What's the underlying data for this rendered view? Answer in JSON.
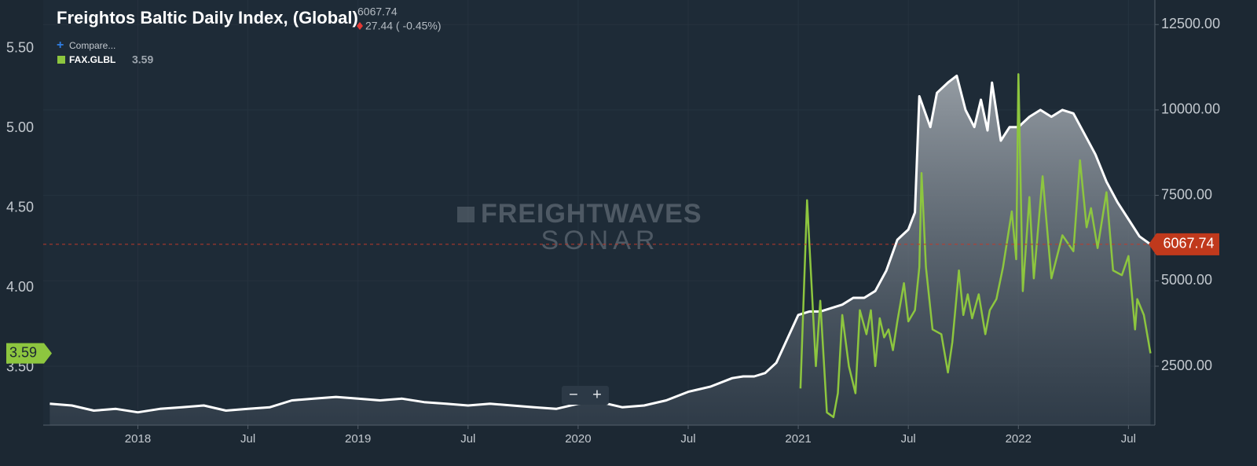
{
  "chart_data": {
    "type": "line",
    "price": 6067.74,
    "change": "27.44 ( -0.45%)",
    "compare_label": "Compare...",
    "watermark": [
      "FREIGHTWAVES",
      "SONAR"
    ],
    "controls": [
      "−",
      "+"
    ],
    "xlim": [
      2017.57,
      2022.62
    ],
    "xticks": [
      {
        "value": 2018,
        "label": "2018"
      },
      {
        "value": 2018.5,
        "label": "Jul"
      },
      {
        "value": 2019,
        "label": "2019"
      },
      {
        "value": 2019.5,
        "label": "Jul"
      },
      {
        "value": 2020,
        "label": "2020"
      },
      {
        "value": 2020.5,
        "label": "Jul"
      },
      {
        "value": 2021,
        "label": "2021"
      },
      {
        "value": 2021.5,
        "label": "Jul"
      },
      {
        "value": 2022,
        "label": "2022"
      },
      {
        "value": 2022.5,
        "label": "Jul"
      }
    ],
    "ylim": [
      3.14,
      5.805
    ],
    "yticks": [
      {
        "value": 3.5,
        "label": "3.50"
      },
      {
        "value": 4.0,
        "label": "4.00"
      },
      {
        "value": 4.5,
        "label": "4.50"
      },
      {
        "value": 5.0,
        "label": "5.00"
      },
      {
        "value": 5.5,
        "label": "5.50"
      }
    ],
    "y2lim": [
      775,
      13218
    ],
    "y2ticks": [
      {
        "value": 2500,
        "label": "2500.00"
      },
      {
        "value": 5000,
        "label": "5000.00"
      },
      {
        "value": 7500,
        "label": "7500.00"
      },
      {
        "value": 10000,
        "label": "10000.00"
      },
      {
        "value": 12500,
        "label": "12500.00"
      }
    ],
    "grid": true,
    "series": [
      {
        "name": "Freightos Baltic Daily Index, (Global)",
        "color": "#ffffff",
        "axis": "y2",
        "x": [
          2017.6,
          2017.7,
          2017.8,
          2017.9,
          2018.0,
          2018.1,
          2018.2,
          2018.3,
          2018.4,
          2018.5,
          2018.6,
          2018.7,
          2018.8,
          2018.9,
          2019.0,
          2019.1,
          2019.2,
          2019.3,
          2019.4,
          2019.5,
          2019.6,
          2019.7,
          2019.8,
          2019.9,
          2020.0,
          2020.1,
          2020.2,
          2020.3,
          2020.4,
          2020.5,
          2020.6,
          2020.7,
          2020.75,
          2020.8,
          2020.85,
          2020.9,
          2020.95,
          2021.0,
          2021.05,
          2021.1,
          2021.15,
          2021.2,
          2021.25,
          2021.3,
          2021.35,
          2021.4,
          2021.45,
          2021.5,
          2021.53,
          2021.55,
          2021.6,
          2021.63,
          2021.68,
          2021.72,
          2021.76,
          2021.8,
          2021.83,
          2021.86,
          2021.88,
          2021.92,
          2021.96,
          2022.0,
          2022.05,
          2022.1,
          2022.15,
          2022.2,
          2022.25,
          2022.3,
          2022.35,
          2022.4,
          2022.45,
          2022.5,
          2022.55,
          2022.6
        ],
        "values": [
          1400,
          1350,
          1200,
          1250,
          1150,
          1250,
          1300,
          1350,
          1200,
          1250,
          1300,
          1500,
          1550,
          1600,
          1550,
          1500,
          1550,
          1450,
          1400,
          1350,
          1400,
          1350,
          1300,
          1250,
          1400,
          1450,
          1300,
          1350,
          1500,
          1750,
          1900,
          2150,
          2200,
          2200,
          2300,
          2600,
          3300,
          4000,
          4100,
          4100,
          4200,
          4300,
          4500,
          4500,
          4700,
          5300,
          6200,
          6500,
          7000,
          10400,
          9500,
          10500,
          10800,
          11000,
          10000,
          9500,
          10300,
          9400,
          10800,
          9100,
          9500,
          9500,
          9800,
          10000,
          9800,
          10000,
          9900,
          9300,
          8700,
          7900,
          7300,
          6800,
          6300,
          6067.74
        ]
      },
      {
        "name": "FAX.GLBL",
        "color": "#8dc63f",
        "axis": "y",
        "x": [
          2021.01,
          2021.04,
          2021.08,
          2021.1,
          2021.13,
          2021.16,
          2021.18,
          2021.2,
          2021.23,
          2021.26,
          2021.28,
          2021.31,
          2021.33,
          2021.35,
          2021.37,
          2021.39,
          2021.41,
          2021.43,
          2021.45,
          2021.48,
          2021.5,
          2021.53,
          2021.55,
          2021.56,
          2021.58,
          2021.61,
          2021.65,
          2021.68,
          2021.7,
          2021.73,
          2021.75,
          2021.77,
          2021.79,
          2021.82,
          2021.85,
          2021.87,
          2021.9,
          2021.93,
          2021.97,
          2021.99,
          2022.0,
          2022.02,
          2022.05,
          2022.07,
          2022.11,
          2022.15,
          2022.2,
          2022.25,
          2022.28,
          2022.31,
          2022.33,
          2022.36,
          2022.4,
          2022.43,
          2022.47,
          2022.5,
          2022.53,
          2022.54,
          2022.57,
          2022.6
        ],
        "values": [
          3.37,
          4.55,
          3.51,
          3.92,
          3.22,
          3.19,
          3.34,
          3.83,
          3.51,
          3.34,
          3.86,
          3.71,
          3.86,
          3.51,
          3.81,
          3.69,
          3.74,
          3.61,
          3.79,
          4.03,
          3.79,
          3.86,
          4.13,
          4.72,
          4.13,
          3.74,
          3.71,
          3.47,
          3.66,
          4.11,
          3.83,
          3.96,
          3.81,
          3.96,
          3.71,
          3.86,
          3.93,
          4.13,
          4.48,
          4.18,
          5.34,
          3.98,
          4.57,
          4.06,
          4.7,
          4.06,
          4.33,
          4.23,
          4.8,
          4.38,
          4.5,
          4.25,
          4.6,
          4.11,
          4.08,
          4.2,
          3.74,
          3.93,
          3.83,
          3.59
        ]
      }
    ]
  }
}
